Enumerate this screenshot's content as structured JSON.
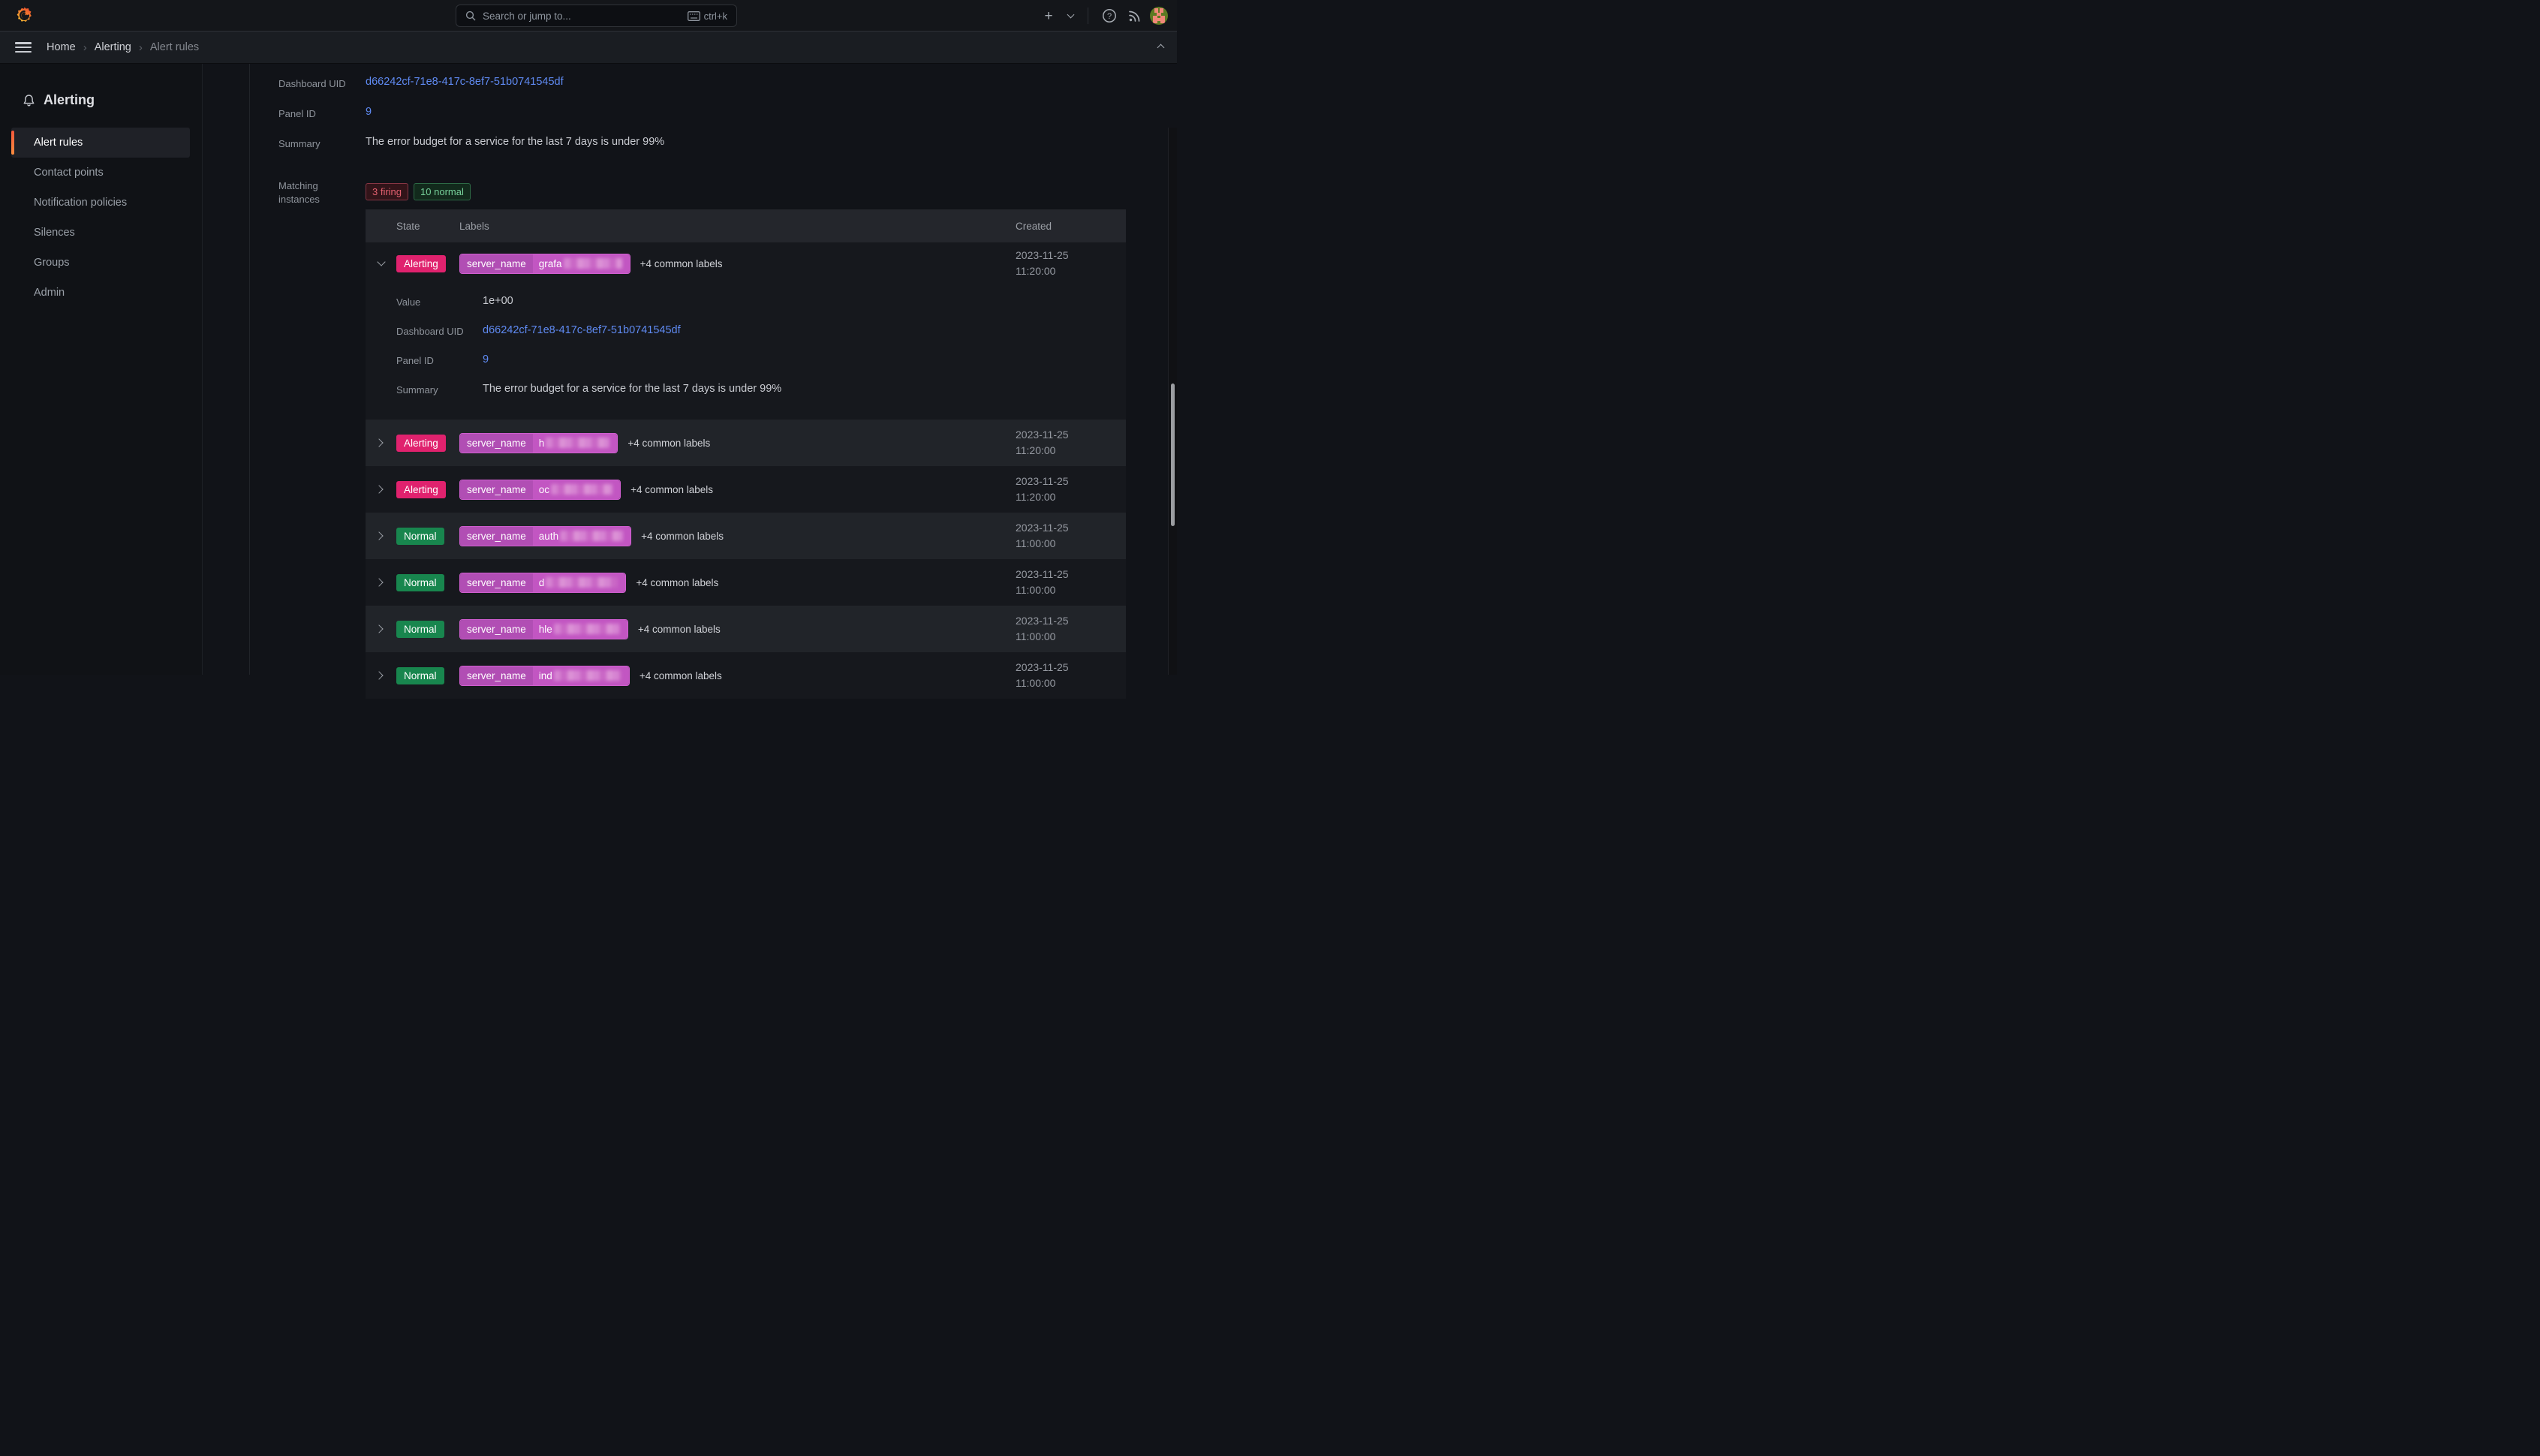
{
  "topnav": {
    "search_placeholder": "Search or jump to...",
    "search_shortcut": "ctrl+k"
  },
  "breadcrumb": {
    "items": [
      "Home",
      "Alerting",
      "Alert rules"
    ],
    "current_index": 2
  },
  "sidebar": {
    "title": "Alerting",
    "items": [
      {
        "label": "Alert rules",
        "active": true
      },
      {
        "label": "Contact points",
        "active": false
      },
      {
        "label": "Notification policies",
        "active": false
      },
      {
        "label": "Silences",
        "active": false
      },
      {
        "label": "Groups",
        "active": false
      },
      {
        "label": "Admin",
        "active": false
      }
    ]
  },
  "fields": {
    "dashboard_uid_label": "Dashboard UID",
    "dashboard_uid_value": "d66242cf-71e8-417c-8ef7-51b0741545df",
    "panel_id_label": "Panel ID",
    "panel_id_value": "9",
    "summary_label": "Summary",
    "summary_value": "The error budget for a service for the last 7 days is under 99%",
    "matching_label": "Matching instances"
  },
  "matching_badges": [
    {
      "text": "3 firing",
      "type": "firing"
    },
    {
      "text": "10 normal",
      "type": "normal"
    }
  ],
  "table": {
    "columns": [
      "State",
      "Labels",
      "Created"
    ],
    "label_key": "server_name",
    "common_labels": "+4 common labels",
    "rows": [
      {
        "state_label": "Alerting",
        "state_key": "alerting",
        "label_prefix": "grafa",
        "blur_w": 78,
        "created_date": "2023-11-25",
        "created_time": "11:20:00",
        "shade": "dark",
        "expanded": "true",
        "details": {
          "value_label": "Value",
          "value": "1e+00",
          "dashboard_uid_label": "Dashboard UID",
          "dashboard_uid": "d66242cf-71e8-417c-8ef7-51b0741545df",
          "panel_id_label": "Panel ID",
          "panel_id": "9",
          "summary_label": "Summary",
          "summary": "The error budget for a service for the last 7 days is under 99%"
        }
      },
      {
        "state_label": "Alerting",
        "state_key": "alerting",
        "label_prefix": "h",
        "blur_w": 85,
        "created_date": "2023-11-25",
        "created_time": "11:20:00",
        "shade": "light",
        "expanded": "false"
      },
      {
        "state_label": "Alerting",
        "state_key": "alerting",
        "label_prefix": "oc",
        "blur_w": 82,
        "created_date": "2023-11-25",
        "created_time": "11:20:00",
        "shade": "dark",
        "expanded": "false"
      },
      {
        "state_label": "Normal",
        "state_key": "normal",
        "label_prefix": "auth",
        "blur_w": 84,
        "created_date": "2023-11-25",
        "created_time": "11:00:00",
        "shade": "light",
        "expanded": "false"
      },
      {
        "state_label": "Normal",
        "state_key": "normal",
        "label_prefix": "d",
        "blur_w": 96,
        "created_date": "2023-11-25",
        "created_time": "11:00:00",
        "shade": "dark",
        "expanded": "false"
      },
      {
        "state_label": "Normal",
        "state_key": "normal",
        "label_prefix": "hle",
        "blur_w": 88,
        "created_date": "2023-11-25",
        "created_time": "11:00:00",
        "shade": "light",
        "expanded": "false"
      },
      {
        "state_label": "Normal",
        "state_key": "normal",
        "label_prefix": "ind",
        "blur_w": 90,
        "created_date": "2023-11-25",
        "created_time": "11:00:00",
        "shade": "dark",
        "expanded": "false"
      }
    ]
  },
  "colors": {
    "alerting_badge": "#e0226e",
    "normal_badge": "#18864e",
    "firing_chip_text": "#e2606f",
    "normal_chip_text": "#77d19b",
    "link": "#5f8af2",
    "sidebar_accent": "#f5593c",
    "label_pill_key": "#b14eb4",
    "label_pill_value": "#c256c2"
  }
}
